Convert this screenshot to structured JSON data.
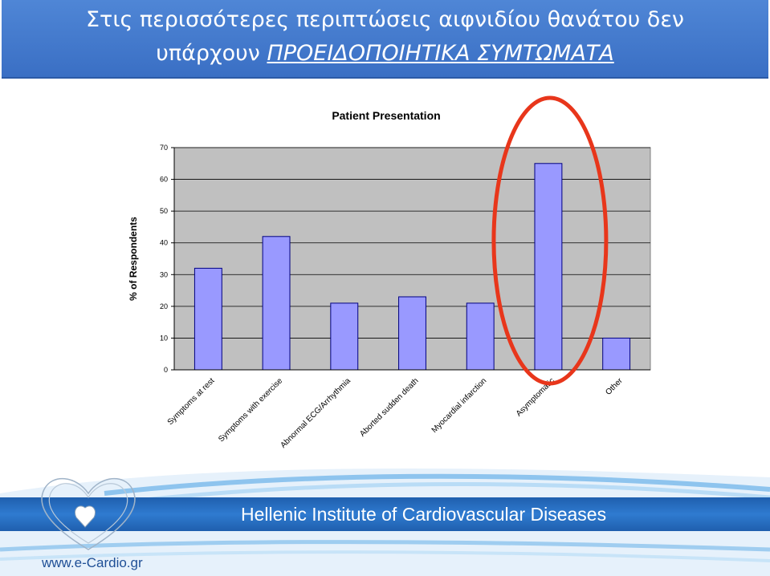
{
  "slide": {
    "title_line1": "Στις περισσότερες περιπτώσεις αιφνιδίου θανάτου δεν",
    "title_line2_plain": "υπάρχουν ",
    "title_line2_emph": "ΠΡΟΕΙΔΟΠΟΙΗΤΙΚΑ ΣΥΜΤΩΜΑΤΑ"
  },
  "chart_data": {
    "type": "bar",
    "title": "Patient Presentation",
    "xlabel": "",
    "ylabel": "% of Respondents",
    "categories": [
      "Symptoms at rest",
      "Symptoms with exercise",
      "Abnormal ECG/Arrhythmia",
      "Aborted sudden death",
      "Myocardial infarction",
      "Asymptomatic",
      "Other"
    ],
    "values": [
      32,
      42,
      21,
      23,
      21,
      65,
      10
    ],
    "ylim": [
      0,
      70
    ],
    "yticks": [
      0,
      10,
      20,
      30,
      40,
      50,
      60,
      70
    ],
    "grid": true,
    "legend": "none",
    "highlight_category": "Asymptomatic",
    "colors": {
      "bar": "#9999ff",
      "bar_border": "#000080",
      "plot_bg": "#c0c0c0",
      "highlight": "#e8361b"
    }
  },
  "footer": {
    "institute": "Hellenic Institute of Cardiovascular Diseases",
    "url": "www.e-Cardio.gr"
  },
  "colors": {
    "title_bg": "#3a6fc4",
    "footer_band": "#2f7bd0"
  }
}
